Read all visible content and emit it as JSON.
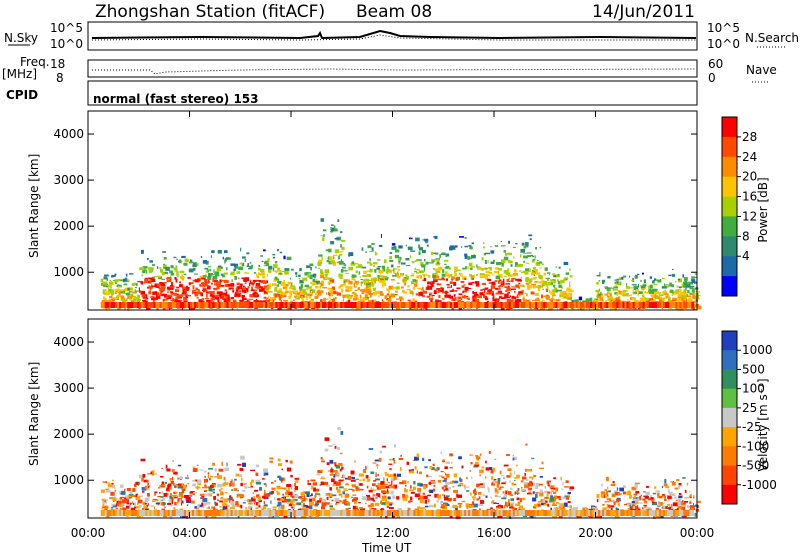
{
  "header": {
    "station": "Zhongshan Station (fitACF)",
    "beam": "Beam 08",
    "date": "14/Jun/2011"
  },
  "top_panels": {
    "nsky_label": "N.Sky",
    "nsky_ticks": [
      "10^5",
      "10^0"
    ],
    "nsearch_label": "N.Search",
    "nsearch_ticks": [
      "10^5",
      "10^0"
    ],
    "freq_label": "Freq.",
    "freq_unit": "[MHz]",
    "freq_ticks": [
      "18",
      "8"
    ],
    "nave_label": "Nave",
    "nave_ticks": [
      "60",
      "0"
    ],
    "cpid_label": "CPID",
    "cpid_text": "normal (fast stereo) 153"
  },
  "chart_data": [
    {
      "type": "heatmap",
      "name": "power",
      "xlabel": "Time UT",
      "ylabel": "Slant Range [km]",
      "x_ticks": [
        "00:00",
        "04:00",
        "08:00",
        "12:00",
        "16:00",
        "20:00",
        "00:00"
      ],
      "y_ticks": [
        "1000",
        "2000",
        "3000",
        "4000"
      ],
      "ylim": [
        180,
        4500
      ],
      "colorbar": {
        "label": "Power [dB]",
        "ticks": [
          "28",
          "24",
          "20",
          "16",
          "12",
          "8",
          "4"
        ],
        "colors": [
          "#ff0000",
          "#ff4a00",
          "#ff8c00",
          "#ffc400",
          "#a8d000",
          "#3fae3f",
          "#2d8a6e",
          "#1e6aa8",
          "#0000ff"
        ]
      }
    },
    {
      "type": "heatmap",
      "name": "velocity",
      "xlabel": "Time UT",
      "ylabel": "Slant Range [km]",
      "x_ticks": [
        "00:00",
        "04:00",
        "08:00",
        "12:00",
        "16:00",
        "20:00",
        "00:00"
      ],
      "y_ticks": [
        "1000",
        "2000",
        "3000",
        "4000"
      ],
      "ylim": [
        180,
        4500
      ],
      "colorbar": {
        "label": "Velocity [m s⁻¹]",
        "ticks": [
          "1000",
          "500",
          "100",
          "25",
          "-25",
          "-100",
          "-500",
          "-1000"
        ],
        "colors": [
          "#1f3fbf",
          "#2f6fbf",
          "#2f8f5f",
          "#5fbf3f",
          "#c8c8c8",
          "#ffa500",
          "#ff7a00",
          "#ff4500",
          "#ff0000"
        ]
      }
    }
  ]
}
